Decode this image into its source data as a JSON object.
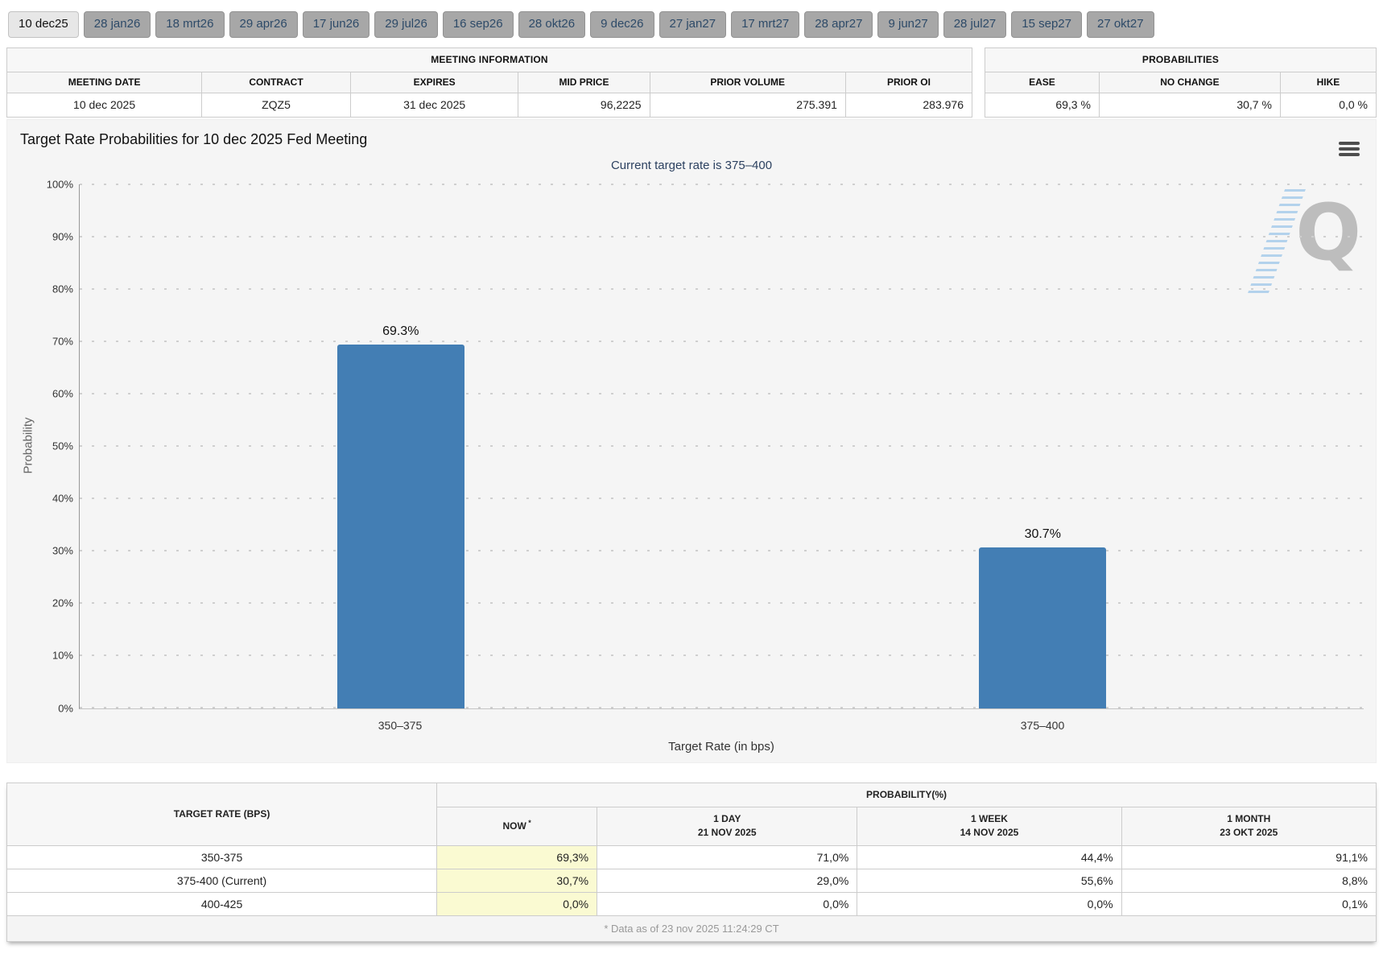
{
  "tabs": {
    "items": [
      {
        "label": "10 dec25",
        "active": true
      },
      {
        "label": "28 jan26",
        "active": false
      },
      {
        "label": "18 mrt26",
        "active": false
      },
      {
        "label": "29 apr26",
        "active": false
      },
      {
        "label": "17 jun26",
        "active": false
      },
      {
        "label": "29 jul26",
        "active": false
      },
      {
        "label": "16 sep26",
        "active": false
      },
      {
        "label": "28 okt26",
        "active": false
      },
      {
        "label": "9 dec26",
        "active": false
      },
      {
        "label": "27 jan27",
        "active": false
      },
      {
        "label": "17 mrt27",
        "active": false
      },
      {
        "label": "28 apr27",
        "active": false
      },
      {
        "label": "9 jun27",
        "active": false
      },
      {
        "label": "28 jul27",
        "active": false
      },
      {
        "label": "15 sep27",
        "active": false
      },
      {
        "label": "27 okt27",
        "active": false
      }
    ]
  },
  "meeting_info": {
    "title": "MEETING INFORMATION",
    "columns": [
      "MEETING DATE",
      "CONTRACT",
      "EXPIRES",
      "MID PRICE",
      "PRIOR VOLUME",
      "PRIOR OI"
    ],
    "values": [
      "10 dec 2025",
      "ZQZ5",
      "31 dec 2025",
      "96,2225",
      "275.391",
      "283.976"
    ]
  },
  "probabilities": {
    "title": "PROBABILITIES",
    "columns": [
      "EASE",
      "NO CHANGE",
      "HIKE"
    ],
    "values": [
      "69,3 %",
      "30,7 %",
      "0,0 %"
    ]
  },
  "chart_data": {
    "type": "bar",
    "title": "Target Rate Probabilities for 10 dec 2025 Fed Meeting",
    "subtitle": "Current target rate is 375–400",
    "categories": [
      "350–375",
      "375–400"
    ],
    "values": [
      69.3,
      30.7
    ],
    "bar_labels": [
      "69.3%",
      "30.7%"
    ],
    "xlabel": "Target Rate (in bps)",
    "ylabel": "Probability",
    "ylim": [
      0,
      100
    ],
    "ytick_step": 10,
    "ytick_suffix": "%",
    "grid": "dotted horizontal",
    "legend": "none",
    "bar_color": "#437EB4"
  },
  "history": {
    "left_header": "TARGET RATE (BPS)",
    "group_header": "PROBABILITY(%)",
    "now_label": "NOW",
    "now_sup": "*",
    "columns": [
      {
        "line1": "1 DAY",
        "line2": "21 NOV 2025"
      },
      {
        "line1": "1 WEEK",
        "line2": "14 NOV 2025"
      },
      {
        "line1": "1 MONTH",
        "line2": "23 OKT 2025"
      }
    ],
    "rows": [
      {
        "rate": "350-375",
        "now": "69,3%",
        "values": [
          "71,0%",
          "44,4%",
          "91,1%"
        ]
      },
      {
        "rate": "375-400 (Current)",
        "now": "30,7%",
        "values": [
          "29,0%",
          "55,6%",
          "8,8%"
        ]
      },
      {
        "rate": "400-425",
        "now": "0,0%",
        "values": [
          "0,0%",
          "0,0%",
          "0,1%"
        ]
      }
    ],
    "footnote": "* Data as of 23 nov 2025 11:24:29 CT"
  },
  "icons": {
    "chart_menu": "hamburger-menu-icon",
    "watermark": "q-logo-watermark"
  },
  "colors": {
    "bar": "#437EB4",
    "subtitle_text": "#2C4160",
    "tab_text": "#2D4A68",
    "tab_inactive_bg": "#A7A7A7",
    "tab_active_bg": "#E7E7E7",
    "now_highlight": "#FAFAD2",
    "panel_bg": "#F5F5F5"
  }
}
